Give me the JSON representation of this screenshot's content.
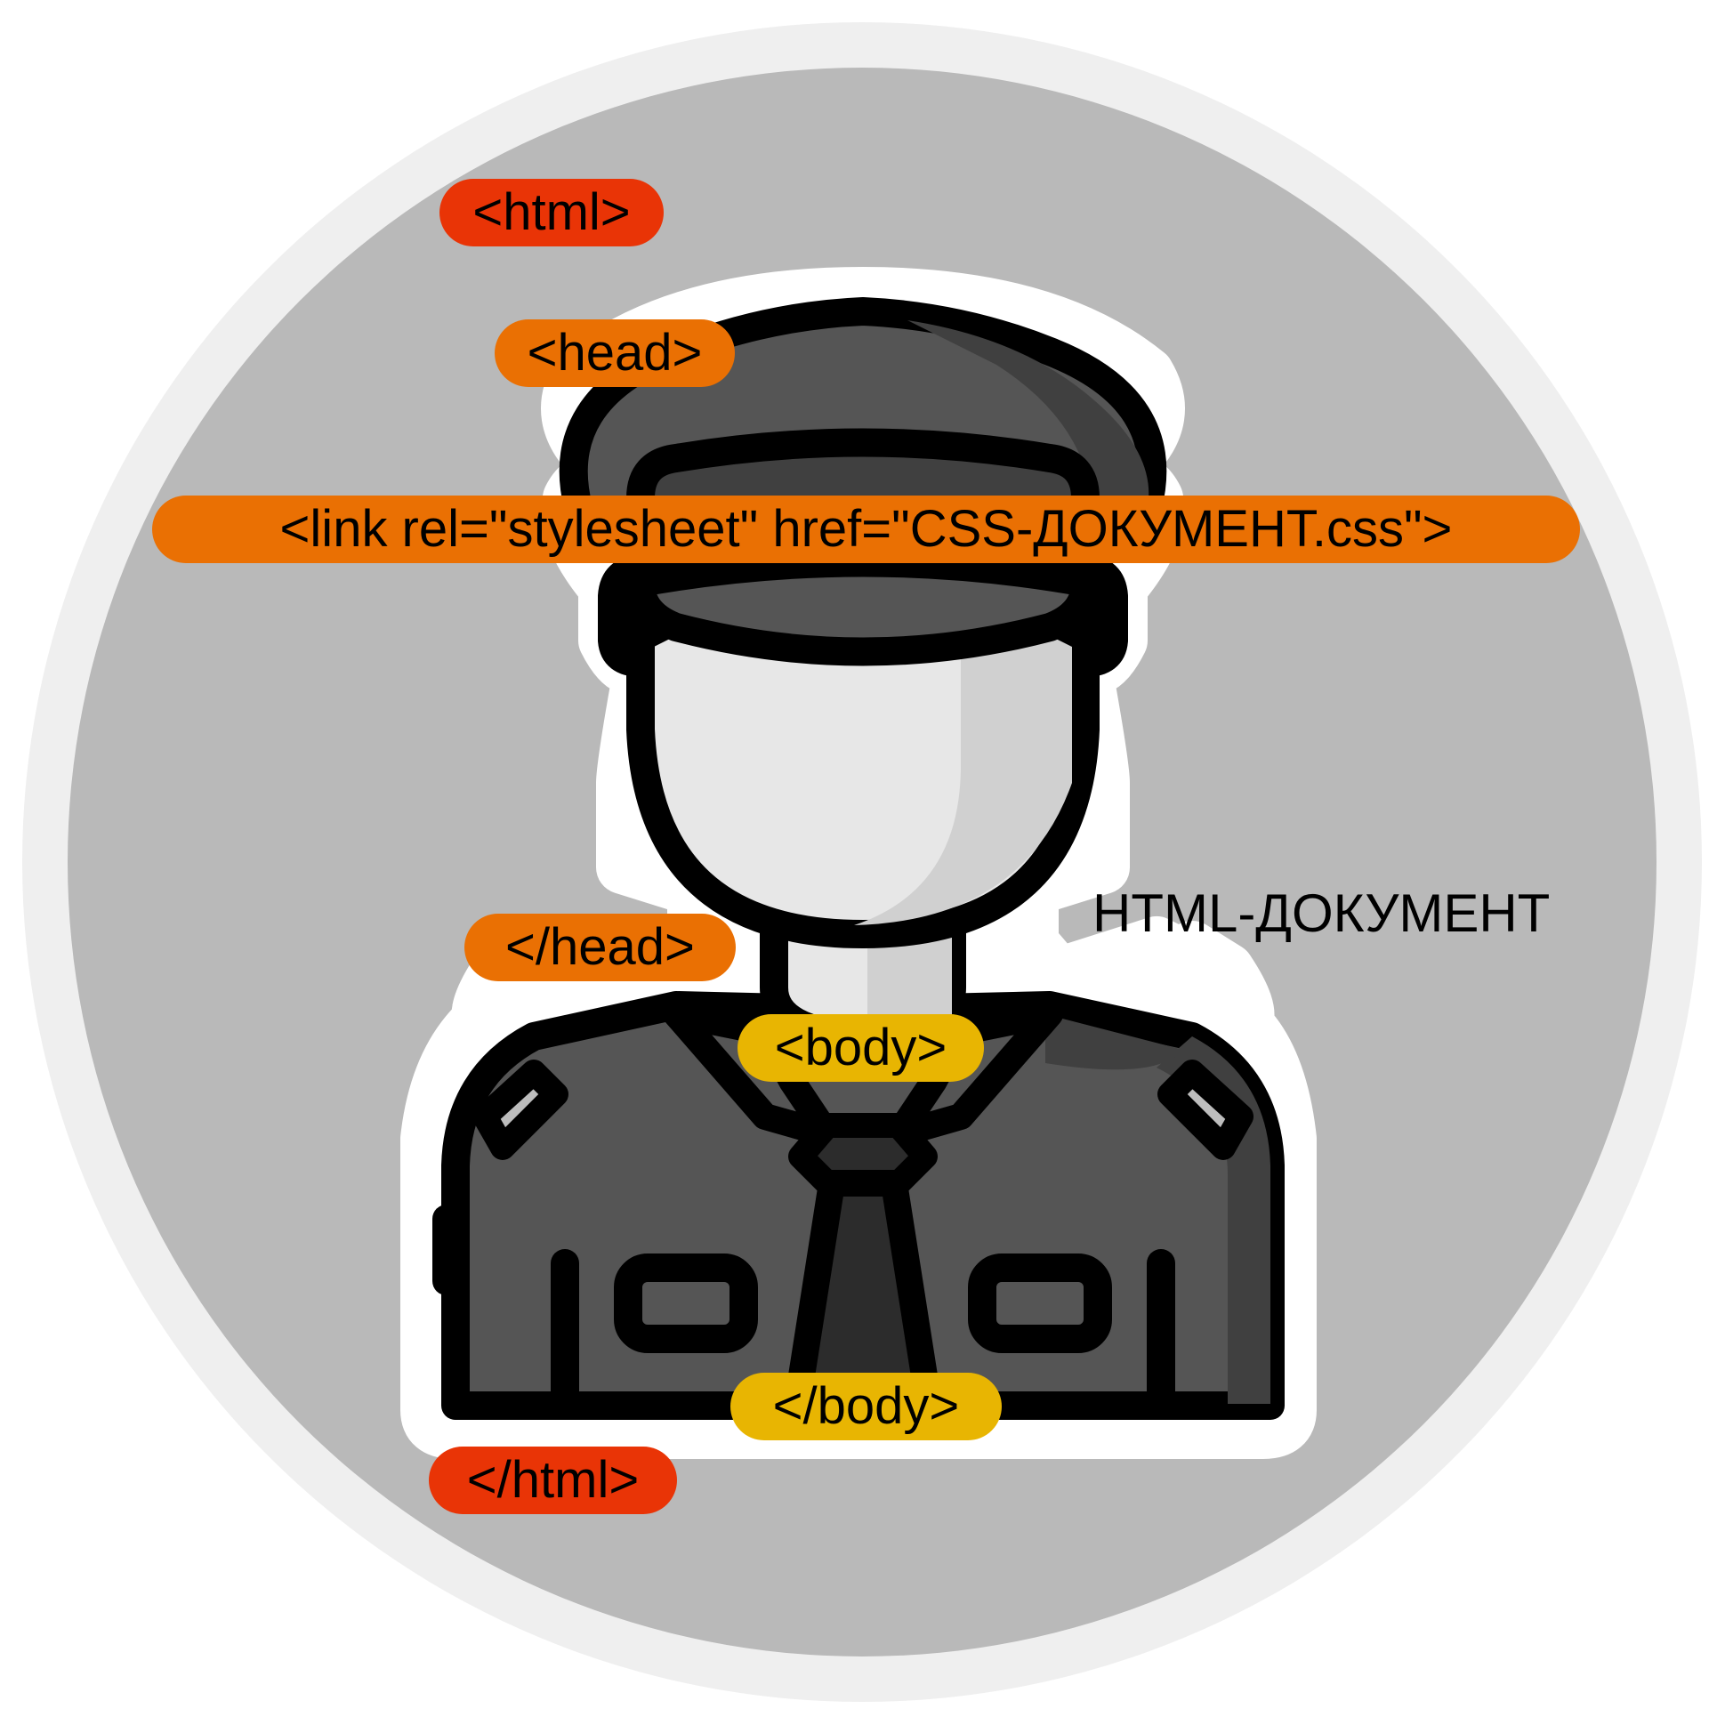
{
  "colors": {
    "html_tag": "#e93406",
    "head_tag": "#ea7003",
    "body_tag": "#e8b502",
    "circle_fill": "#b9b9b9",
    "circle_ring": "#efefef",
    "uniform_dark": "#555555",
    "uniform_shadow": "#404040",
    "tie": "#2c2c2c",
    "skin": "#e7e7e7",
    "outline": "#000000"
  },
  "icons": [
    "police-officer-icon"
  ],
  "tags": {
    "html_open": "<html>",
    "head_open": "<head>",
    "link": "<link rel=\"stylesheet\" href=\"CSS-ДОКУМЕНТ.css\">",
    "head_close": "</head>",
    "body_open": "<body>",
    "body_close": "</body>",
    "html_close": "</html>"
  },
  "caption": "HTML-ДОКУМЕНТ"
}
